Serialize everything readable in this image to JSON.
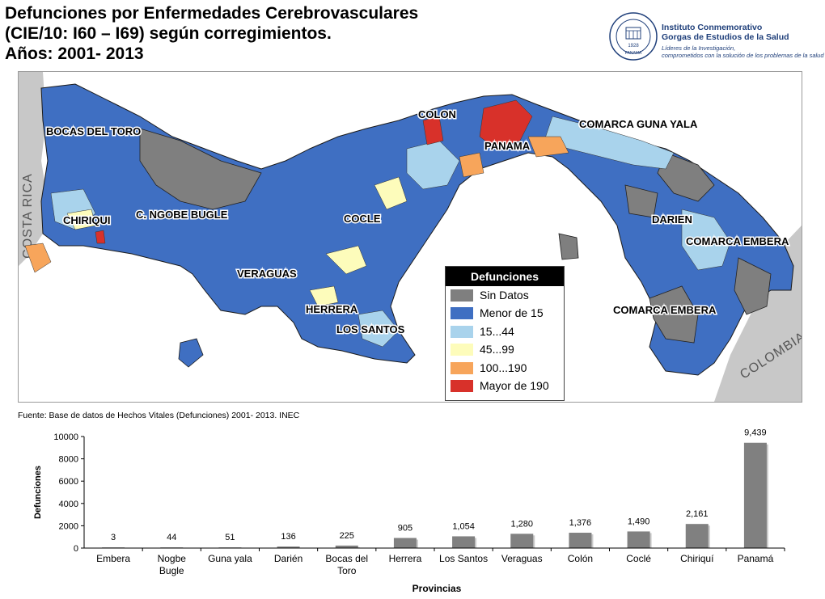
{
  "title": {
    "line1": "Defunciones por Enfermedades Cerebrovasculares",
    "line2": "(CIE/10: I60 – I69) según corregimientos.",
    "line3": "Años: 2001- 2013"
  },
  "logo": {
    "name_line1": "Instituto Conmemorativo",
    "name_line2": "Gorgas de Estudios de la Salud",
    "tagline_line1": "Líderes de la Investigación,",
    "tagline_line2": "comprometidos con la solución de los problemas de la salud",
    "seal_year": "1928",
    "seal_place": "PANAMA"
  },
  "map": {
    "neighbors": {
      "west": "COSTA RICA",
      "east": "COLOMBIA"
    },
    "region_labels": [
      "BOCAS DEL TORO",
      "CHIRIQUI",
      "C. NGOBE BUGLE",
      "VERAGUAS",
      "HERRERA",
      "LOS SANTOS",
      "COCLE",
      "COLON",
      "PANAMA",
      "COMARCA GUNA YALA",
      "DARIEN",
      "COMARCA EMBERA",
      "COMARCA EMBERA"
    ],
    "colors": {
      "sin_datos": "#7f7f7f",
      "menor_15": "#3f6fc2",
      "r15_44": "#a9d3ec",
      "r45_99": "#fdfcbb",
      "r100_190": "#f7a55b",
      "mayor_190": "#d8312a",
      "neighbor": "#c8c8c8",
      "sea": "#ffffff"
    },
    "legend": {
      "title": "Defunciones",
      "items": [
        {
          "label": "Sin Datos",
          "color": "#7f7f7f"
        },
        {
          "label": "Menor de 15",
          "color": "#3f6fc2"
        },
        {
          "label": "15...44",
          "color": "#a9d3ec"
        },
        {
          "label": "45...99",
          "color": "#fdfcbb"
        },
        {
          "label": "100...190",
          "color": "#f7a55b"
        },
        {
          "label": "Mayor de 190",
          "color": "#d8312a"
        }
      ]
    }
  },
  "source": "Fuente: Base de datos de Hechos Vitales (Defunciones) 2001- 2013. INEC",
  "chart_data": {
    "type": "bar",
    "categories": [
      "Embera",
      "Nogbe Bugle",
      "Guna yala",
      "Darién",
      "Bocas del Toro",
      "Herrera",
      "Los Santos",
      "Veraguas",
      "Colón",
      "Coclé",
      "Chiriquí",
      "Panamá"
    ],
    "values": [
      3,
      44,
      51,
      136,
      225,
      905,
      1054,
      1280,
      1376,
      1490,
      2161,
      9439
    ],
    "value_labels": [
      "3",
      "44",
      "51",
      "136",
      "225",
      "905",
      "1,054",
      "1,280",
      "1,376",
      "1,490",
      "2,161",
      "9,439"
    ],
    "xlabel": "Provincias",
    "ylabel": "Defunciones",
    "ylim": [
      0,
      10000
    ],
    "yticks": [
      0,
      2000,
      4000,
      6000,
      8000,
      10000
    ],
    "bar_color": "#808080",
    "grid": false,
    "legend": false
  }
}
